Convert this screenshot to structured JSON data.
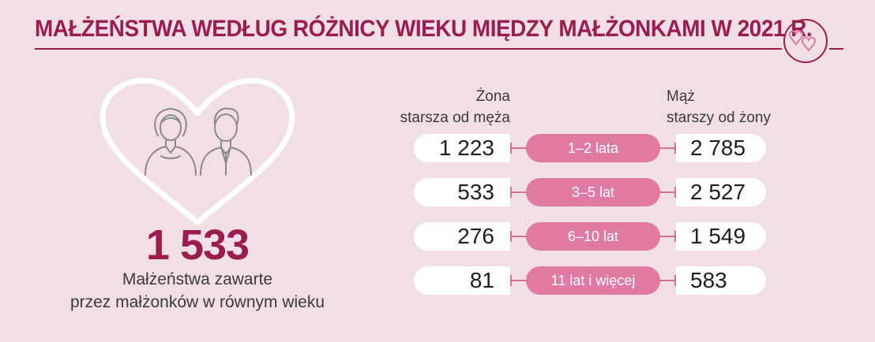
{
  "title": "MAŁŻEŃSTWA WEDŁUG RÓŻNICY WIEKU MIĘDZY MAŁŻONKAMI W 2021 R.",
  "icons": [
    "hearts-badge-icon",
    "heart-outline-icon",
    "couple-icon"
  ],
  "colors": {
    "background": "#f2dfe6",
    "accent": "#9b1d4d",
    "pill": "#e07aa0",
    "connector": "#d66f93",
    "value_box": "#ffffff",
    "text": "#1e1e1e"
  },
  "equal_age": {
    "value": "1 533",
    "caption_line1": "Małżeństwa zawarte",
    "caption_line2": "przez małżonków w równym wieku"
  },
  "chart_data": {
    "type": "table",
    "headers": {
      "left_line1": "Żona",
      "left_line2": "starsza od męża",
      "right_line1": "Mąż",
      "right_line2": "starszy od żony"
    },
    "rows": [
      {
        "category": "1–2 lata",
        "wife_older": "1 223",
        "husband_older": "2 785"
      },
      {
        "category": "3–5 lat",
        "wife_older": "533",
        "husband_older": "2 527"
      },
      {
        "category": "6–10 lat",
        "wife_older": "276",
        "husband_older": "1 549"
      },
      {
        "category": "11 lat i więcej",
        "wife_older": "81",
        "husband_older": "583"
      }
    ]
  }
}
